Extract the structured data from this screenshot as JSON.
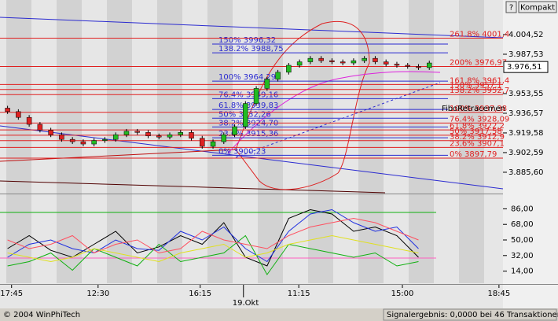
{
  "toolbar": {
    "help": "?",
    "compact": "Kompakt"
  },
  "footer": {
    "copyright": "© 2004 WinPhiTech",
    "status": "Signalergebnis: 0,0000 bei 46 Transaktionen"
  },
  "chart_data": [
    {
      "type": "candlestick",
      "x": [
        1.5,
        3.65,
        5.8,
        7.95,
        10.1,
        12.25,
        14.4,
        16.55,
        18.7,
        20.85,
        23.0,
        25.15,
        27.3,
        29.45,
        31.6,
        33.75,
        35.9,
        38.05,
        40.2,
        42.35,
        44.5,
        46.65,
        48.8,
        50.95,
        53.1,
        55.25,
        57.4,
        59.55,
        61.7,
        63.85,
        66.0,
        68.15,
        70.3,
        72.45,
        74.6,
        76.75,
        78.9,
        81.05,
        83.2,
        85.35
      ],
      "open": [
        3941,
        3938,
        3933,
        3927,
        3922,
        3918,
        3914,
        3912,
        3910,
        3913,
        3914,
        3918,
        3921,
        3920,
        3917,
        3916,
        3918,
        3920,
        3915,
        3908,
        3912,
        3918,
        3925,
        3945,
        3958,
        3966,
        3972,
        3978,
        3981,
        3984,
        3982,
        3981,
        3980,
        3982,
        3984,
        3981,
        3979,
        3978,
        3977,
        3976
      ],
      "high": [
        3943,
        3940,
        3935,
        3929,
        3924,
        3920,
        3916,
        3914,
        3915,
        3916,
        3920,
        3923,
        3923,
        3922,
        3919,
        3920,
        3922,
        3922,
        3917,
        3914,
        3920,
        3927,
        3947,
        3960,
        3968,
        3974,
        3980,
        3983,
        3986,
        3986,
        3984,
        3983,
        3984,
        3986,
        3986,
        3983,
        3981,
        3980,
        3979,
        3982
      ],
      "low": [
        3936,
        3931,
        3925,
        3920,
        3916,
        3912,
        3910,
        3908,
        3908,
        3911,
        3912,
        3916,
        3918,
        3915,
        3914,
        3914,
        3916,
        3913,
        3906,
        3906,
        3910,
        3916,
        3923,
        3943,
        3956,
        3964,
        3970,
        3976,
        3979,
        3980,
        3979,
        3978,
        3978,
        3980,
        3979,
        3977,
        3976,
        3975,
        3974,
        3974
      ],
      "close": [
        3938,
        3933,
        3927,
        3922,
        3918,
        3914,
        3912,
        3910,
        3913,
        3914,
        3918,
        3921,
        3920,
        3917,
        3916,
        3918,
        3920,
        3915,
        3908,
        3912,
        3918,
        3925,
        3945,
        3958,
        3966,
        3972,
        3978,
        3981,
        3984,
        3982,
        3981,
        3980,
        3982,
        3984,
        3981,
        3979,
        3978,
        3977,
        3976,
        3980
      ],
      "up_color": "#22bb22",
      "down_color": "#dd2222",
      "xlim": [
        0,
        100
      ],
      "ylim": [
        3867.9,
        4020.8
      ],
      "yticks": [
        {
          "value": 4004.52,
          "label": "4.004,52"
        },
        {
          "value": 3987.53,
          "label": "3.987,53"
        },
        {
          "value": 3953.55,
          "label": "3.953,55"
        },
        {
          "value": 3936.57,
          "label": "3.936,57"
        },
        {
          "value": 3919.58,
          "label": "3.919,58"
        },
        {
          "value": 3902.59,
          "label": "3.902,59"
        },
        {
          "value": 3885.6,
          "label": "3.885,60"
        }
      ],
      "last_price": {
        "value": 3976.51,
        "label": "3.976,51"
      },
      "fibo_label": "FiboRetracemen",
      "fibo_sets": [
        {
          "color": "#2a2ad0",
          "levels": [
            {
              "value": 3996.32,
              "label": "150% 3996,32"
            },
            {
              "value": 3988.75,
              "label": "138.2% 3988,75"
            },
            {
              "value": 3964.29,
              "label": "100% 3964,29"
            },
            {
              "value": 3949.16,
              "label": "76.4% 3949,16"
            },
            {
              "value": 3939.83,
              "label": "61.8% 3939,83"
            },
            {
              "value": 3932.26,
              "label": "50% 3932,26"
            },
            {
              "value": 3924.7,
              "label": "38.2% 3924,70"
            },
            {
              "value": 3915.36,
              "label": "23.6% 3915,36"
            },
            {
              "value": 3900.23,
              "label": "0% 3900,23"
            }
          ]
        },
        {
          "color": "#e02020",
          "levels": [
            {
              "value": 4001.4,
              "label": "261.8% 4001,4"
            },
            {
              "value": 3976.97,
              "label": "200% 3976,97"
            },
            {
              "value": 3961.4,
              "label": "161.8% 3961,4"
            },
            {
              "value": 3957.1,
              "label": "150% 3957,1"
            },
            {
              "value": 3952.7,
              "label": "138.2% 3952,7"
            },
            {
              "value": 3937.38,
              "label": "100% 3937,38"
            },
            {
              "value": 3928.09,
              "label": "76.4% 3928,09"
            },
            {
              "value": 3922.2,
              "label": "61.8% 3922,2"
            },
            {
              "value": 3917.58,
              "label": "50% 3917,58"
            },
            {
              "value": 3912.9,
              "label": "38.2% 3912,9"
            },
            {
              "value": 3907.1,
              "label": "23.6% 3907,1"
            },
            {
              "value": 3897.79,
              "label": "0% 3897,79"
            }
          ]
        }
      ]
    },
    {
      "type": "line",
      "x": [
        1.5,
        5.8,
        10.1,
        14.4,
        18.7,
        23.0,
        27.3,
        31.6,
        35.9,
        40.2,
        44.5,
        48.8,
        53.1,
        57.4,
        61.7,
        66.0,
        70.3,
        74.6,
        78.9,
        83.2
      ],
      "series": [
        {
          "name": "black",
          "color": "#000000",
          "values": [
            40,
            55,
            38,
            30,
            45,
            60,
            35,
            42,
            55,
            45,
            70,
            30,
            20,
            75,
            85,
            80,
            60,
            65,
            55,
            30
          ]
        },
        {
          "name": "blue",
          "color": "#2030e0",
          "values": [
            30,
            45,
            50,
            40,
            35,
            50,
            40,
            38,
            60,
            50,
            65,
            40,
            25,
            60,
            80,
            85,
            70,
            60,
            65,
            40
          ]
        },
        {
          "name": "green",
          "color": "#10b010",
          "values": [
            20,
            25,
            35,
            15,
            40,
            30,
            20,
            45,
            25,
            30,
            35,
            55,
            10,
            45,
            40,
            35,
            30,
            35,
            20,
            25
          ]
        },
        {
          "name": "red",
          "color": "#ff5060",
          "values": [
            50,
            40,
            45,
            55,
            35,
            45,
            50,
            35,
            40,
            60,
            50,
            45,
            40,
            55,
            65,
            70,
            75,
            70,
            60,
            50
          ]
        },
        {
          "name": "yellow",
          "color": "#e0e020",
          "values": [
            35,
            30,
            25,
            30,
            40,
            35,
            30,
            25,
            35,
            40,
            45,
            30,
            35,
            45,
            50,
            55,
            50,
            45,
            40,
            35
          ]
        }
      ],
      "xlim": [
        0,
        100
      ],
      "ylim": [
        0,
        100
      ],
      "yticks": [
        {
          "value": 86,
          "label": "86,00"
        },
        {
          "value": 68,
          "label": "68,00"
        },
        {
          "value": 50,
          "label": "50,00"
        },
        {
          "value": 32,
          "label": "32,00"
        },
        {
          "value": 14,
          "label": "14,00"
        }
      ],
      "xticks": [
        {
          "value": 2.3,
          "label": "17:45"
        },
        {
          "value": 19.5,
          "label": "12:30"
        },
        {
          "value": 39.8,
          "label": "16:15"
        },
        {
          "value": 59.4,
          "label": "11:15"
        },
        {
          "value": 80,
          "label": "15:00"
        },
        {
          "value": 99.2,
          "label": "18:45"
        }
      ],
      "date_ticks": [
        {
          "value": 48.4,
          "label": "19.Okt"
        }
      ]
    }
  ]
}
